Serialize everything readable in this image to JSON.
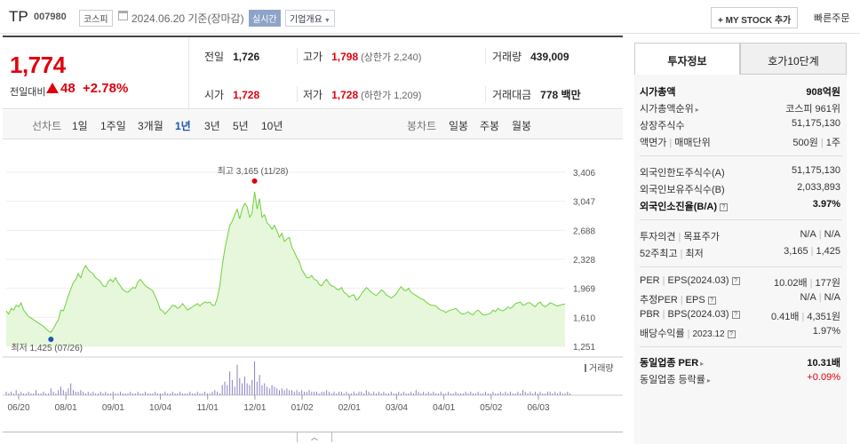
{
  "header": {
    "name": "TP",
    "code": "007980",
    "market": "코스피",
    "date": "2024.06.20 기준(장마감)",
    "realtime": "실시간",
    "overview": "기업개요",
    "mystock": "+ MY STOCK 추가",
    "quick_order": "빠른주문"
  },
  "summary": {
    "price": "1,774",
    "change_label": "전일대비",
    "change": "48",
    "change_pct": "+2.78%",
    "prev_label": "전일",
    "prev": "1,726",
    "high_label": "고가",
    "high": "1,798",
    "high_limit": "(상한가 2,240)",
    "volume_label": "거래량",
    "volume": "439,009",
    "open_label": "시가",
    "open": "1,728",
    "low_label": "저가",
    "low": "1,728",
    "low_limit": "(하한가 1,209)",
    "amount_label": "거래대금",
    "amount": "778 백만"
  },
  "tabs": {
    "line_chart": "선차트",
    "periods": [
      "1일",
      "1주일",
      "3개월",
      "1년",
      "3년",
      "5년",
      "10년"
    ],
    "active_period": "1년",
    "candle_chart": "봉차트",
    "candles": [
      "일봉",
      "주봉",
      "월봉"
    ]
  },
  "chart_data": {
    "type": "area",
    "y_ticks": [
      "3,406",
      "3,047",
      "2,688",
      "2,328",
      "1,969",
      "1,610",
      "1,251"
    ],
    "ylim": [
      1251,
      3406
    ],
    "x_labels": [
      "06/20",
      "08/01",
      "09/01",
      "10/04",
      "11/01",
      "12/01",
      "01/02",
      "02/01",
      "03/04",
      "04/01",
      "05/02",
      "06/03"
    ],
    "max_label": "최고 3,165 (11/28)",
    "min_label": "최저 1,425 (07/26)",
    "volume_legend": "거래량",
    "colors": {
      "line": "#6fd13a",
      "fill": "#e6f7db",
      "max": "#e0000c",
      "min": "#1a56b0",
      "volume": "#8a7fc2"
    },
    "series": [
      {
        "values": [
          1690,
          1650,
          1720,
          1700,
          1760,
          1740,
          1790,
          1700,
          1660,
          1620,
          1600,
          1580,
          1560,
          1540,
          1520,
          1500,
          1470,
          1440,
          1425,
          1470,
          1530,
          1580,
          1700,
          1690,
          1780,
          1880,
          1960,
          2040,
          2080,
          2150,
          2100,
          2200,
          2250,
          2200,
          2170,
          2150,
          2100,
          2080,
          2050,
          2000,
          1990,
          2050,
          2080,
          2050,
          2100,
          2040,
          2000,
          1950,
          1930,
          1920,
          1950,
          1980,
          1970,
          2050,
          2080,
          2040,
          2000,
          1980,
          1960,
          1940,
          1870,
          1800,
          1710,
          1690,
          1650,
          1690,
          1720,
          1760,
          1750,
          1720,
          1740,
          1780,
          1740,
          1700,
          1720,
          1740,
          1760,
          1780,
          1750,
          1780,
          1800,
          1790,
          1800,
          1760,
          1760,
          1850,
          2000,
          2250,
          2450,
          2600,
          2750,
          2800,
          2880,
          2950,
          2830,
          2950,
          3020,
          2980,
          2850,
          2900,
          3165,
          2950,
          3080,
          2850,
          2880,
          2780,
          2750,
          2700,
          2750,
          2680,
          2600,
          2650,
          2550,
          2580,
          2600,
          2480,
          2420,
          2350,
          2300,
          2200,
          2150,
          2100,
          2100,
          2130,
          2080,
          2070,
          2020,
          2000,
          2050,
          2080,
          2030,
          2000,
          1990,
          1960,
          1950,
          1980,
          1920,
          1900,
          1860,
          1880,
          1890,
          1820,
          1850,
          1900,
          1940,
          1980,
          1950,
          1920,
          1900,
          1880,
          1910,
          1950,
          1930,
          1890,
          1870,
          1850,
          1870,
          1900,
          1950,
          1990,
          1950,
          1940,
          1970,
          1920,
          1900,
          1880,
          1860,
          1840,
          1830,
          1800,
          1780,
          1760,
          1760,
          1750,
          1720,
          1700,
          1690,
          1670,
          1690,
          1700,
          1710,
          1720,
          1690,
          1660,
          1650,
          1660,
          1680,
          1650,
          1640,
          1680,
          1700,
          1670,
          1640,
          1640,
          1650,
          1660,
          1700,
          1680,
          1720,
          1700,
          1690,
          1710,
          1740,
          1720,
          1740,
          1780,
          1790,
          1800,
          1760,
          1770,
          1790,
          1790,
          1760,
          1740,
          1780,
          1800,
          1760,
          1740,
          1760,
          1790,
          1780,
          1760,
          1750,
          1760,
          1770,
          1774
        ]
      },
      {
        "name": "거래량",
        "values": [
          2,
          1,
          2,
          1,
          3,
          1,
          2,
          1,
          1,
          2,
          1,
          1,
          3,
          1,
          1,
          2,
          1,
          1,
          4,
          2,
          1,
          3,
          5,
          3,
          2,
          4,
          7,
          3,
          2,
          2,
          3,
          2,
          1,
          2,
          1,
          2,
          1,
          1,
          2,
          1,
          2,
          1,
          1,
          2,
          1,
          1,
          2,
          1,
          1,
          1,
          2,
          1,
          1,
          2,
          1,
          1,
          2,
          1,
          1,
          1,
          2,
          1,
          1,
          1,
          2,
          1,
          1,
          2,
          1,
          1,
          2,
          1,
          1,
          1,
          2,
          1,
          1,
          2,
          1,
          1,
          2,
          1,
          1,
          2,
          3,
          2,
          1,
          6,
          8,
          6,
          14,
          9,
          5,
          18,
          10,
          7,
          11,
          7,
          6,
          9,
          20,
          8,
          12,
          6,
          7,
          5,
          4,
          6,
          5,
          4,
          3,
          4,
          3,
          4,
          3,
          3,
          2,
          3,
          2,
          3,
          2,
          2,
          3,
          2,
          2,
          2,
          1,
          2,
          2,
          3,
          2,
          1,
          2,
          1,
          2,
          2,
          1,
          2,
          1,
          1,
          2,
          1,
          2,
          2,
          1,
          3,
          2,
          1,
          2,
          1,
          2,
          1,
          2,
          1,
          1,
          2,
          1,
          1,
          2,
          1,
          2,
          1,
          1,
          2,
          1,
          3,
          2,
          1,
          2,
          1,
          2,
          1,
          2,
          1,
          1,
          2,
          1,
          1,
          2,
          1,
          1,
          2,
          1,
          1,
          1,
          2,
          1,
          2,
          1,
          1,
          2,
          1,
          1,
          2,
          1,
          1,
          2,
          1,
          1,
          2,
          1,
          2,
          1,
          2,
          1,
          1,
          2,
          1,
          3,
          2,
          1,
          2,
          1,
          2,
          1,
          2,
          1,
          1,
          2,
          2,
          1,
          2,
          1,
          2,
          1,
          1,
          2,
          1
        ]
      }
    ]
  },
  "side": {
    "tab_active": "투자정보",
    "tab_other": "호가10단계",
    "market_cap_label": "시가총액",
    "market_cap": "908억원",
    "market_cap_rank_label": "시가총액순위",
    "market_cap_rank": "코스피 961위",
    "shares_label": "상장주식수",
    "shares": "51,175,130",
    "par_label": "액면가",
    "unit_label": "매매단위",
    "par": "500원",
    "unit": "1주",
    "foreign_limit_label": "외국인한도주식수(A)",
    "foreign_limit": "51,175,130",
    "foreign_hold_label": "외국인보유주식수(B)",
    "foreign_hold": "2,033,893",
    "foreign_ratio_label": "외국인소진율(B/A)",
    "foreign_ratio": "3.97%",
    "opinion_label": "투자의견",
    "target_label": "목표주가",
    "opinion": "N/A",
    "target": "N/A",
    "w52_high_label": "52주최고",
    "w52_low_label": "최저",
    "w52_high": "3,165",
    "w52_low": "1,425",
    "per_label": "PER",
    "eps_label": "EPS(2024.03)",
    "per": "10.02배",
    "eps": "177원",
    "est_per_label": "추정PER",
    "est_eps_label": "EPS",
    "est_per": "N/A",
    "est_eps": "N/A",
    "pbr_label": "PBR",
    "bps_label": "BPS(2024.03)",
    "pbr": "0.41배",
    "bps": "4,351원",
    "div_label": "배당수익률",
    "div_date": "2023.12",
    "div": "1.97%",
    "sector_per_label": "동일업종 PER",
    "sector_per": "10.31배",
    "sector_rate_label": "동일업종 등락률",
    "sector_rate": "+0.09%"
  },
  "collapse_icon": "chevron-up-icon"
}
